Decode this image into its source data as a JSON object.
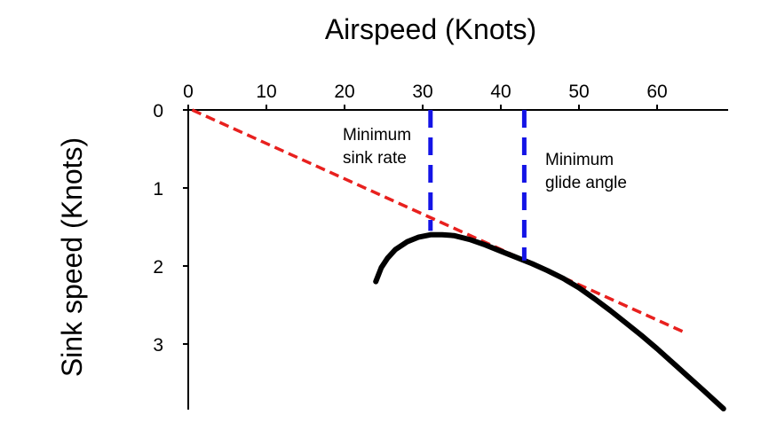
{
  "chart_data": {
    "type": "line",
    "xlabel": "Airspeed (Knots)",
    "ylabel": "Sink speed (Knots)",
    "x_axis_position": "top",
    "y_axis_inverted": true,
    "xlim": [
      0,
      69
    ],
    "ylim": [
      0,
      3.8
    ],
    "x_ticks": [
      "0",
      "10",
      "20",
      "30",
      "40",
      "50",
      "60"
    ],
    "y_ticks": [
      "0",
      "1",
      "2",
      "3"
    ],
    "grid": false,
    "colors": {
      "polar": "#000000",
      "tangent": "#e8201e",
      "markers": "#1414e6"
    },
    "series": [
      {
        "role": "polar",
        "style": "solid",
        "x": [
          24,
          24.7,
          25.5,
          26.5,
          28,
          29.5,
          31,
          32.5,
          34,
          36,
          38,
          40,
          42,
          44,
          46,
          48,
          50,
          52,
          54,
          56,
          58,
          60,
          62,
          64,
          66,
          68.5
        ],
        "y": [
          2.2,
          2.02,
          1.9,
          1.79,
          1.69,
          1.63,
          1.6,
          1.6,
          1.61,
          1.66,
          1.73,
          1.81,
          1.89,
          1.97,
          2.06,
          2.16,
          2.28,
          2.42,
          2.57,
          2.73,
          2.89,
          3.06,
          3.24,
          3.42,
          3.6,
          3.83
        ]
      },
      {
        "role": "tangent",
        "style": "dashed",
        "x": [
          0.5,
          63.5
        ],
        "y": [
          0,
          2.85
        ]
      }
    ],
    "vlines": [
      {
        "x": 31,
        "y_from": 0,
        "y_to": 1.55,
        "style": "dashed",
        "annotation": "Minimum sink rate"
      },
      {
        "x": 43,
        "y_from": 0,
        "y_to": 1.93,
        "style": "dashed",
        "annotation": "Minimum glide angle"
      }
    ],
    "annotations": [
      {
        "lines": [
          "Minimum",
          "sink rate"
        ],
        "anchor": "left-of-first-marker"
      },
      {
        "lines": [
          "Minimum",
          "glide angle"
        ],
        "anchor": "right-of-second-marker"
      }
    ]
  }
}
